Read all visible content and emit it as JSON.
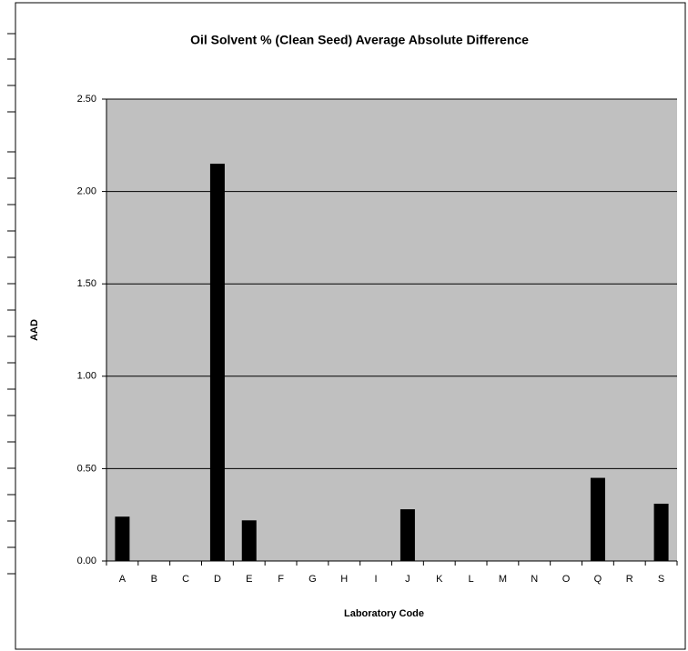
{
  "chart_data": {
    "type": "bar",
    "title": "Oil Solvent % (Clean Seed) Average Absolute Difference",
    "x_label": "Laboratory Code",
    "y_label": "AAD",
    "categories": [
      "A",
      "B",
      "C",
      "D",
      "E",
      "F",
      "G",
      "H",
      "I",
      "J",
      "K",
      "L",
      "M",
      "N",
      "O",
      "Q",
      "R",
      "S"
    ],
    "values": [
      0.24,
      0,
      0,
      2.15,
      0.22,
      0,
      0,
      0,
      0,
      0.28,
      0,
      0,
      0,
      0,
      0,
      0.45,
      0,
      0.31
    ],
    "color": "#000000",
    "plot_background": "#c0c0c0",
    "ylim": [
      0,
      2.5
    ],
    "yticks": [
      {
        "value": 0,
        "label": "0.00"
      },
      {
        "value": 0.5,
        "label": "0.50"
      },
      {
        "value": 1,
        "label": "1.00"
      },
      {
        "value": 1.5,
        "label": "1.50"
      },
      {
        "value": 2,
        "label": "2.00"
      },
      {
        "value": 2.5,
        "label": "2.50"
      }
    ],
    "grid": true
  }
}
